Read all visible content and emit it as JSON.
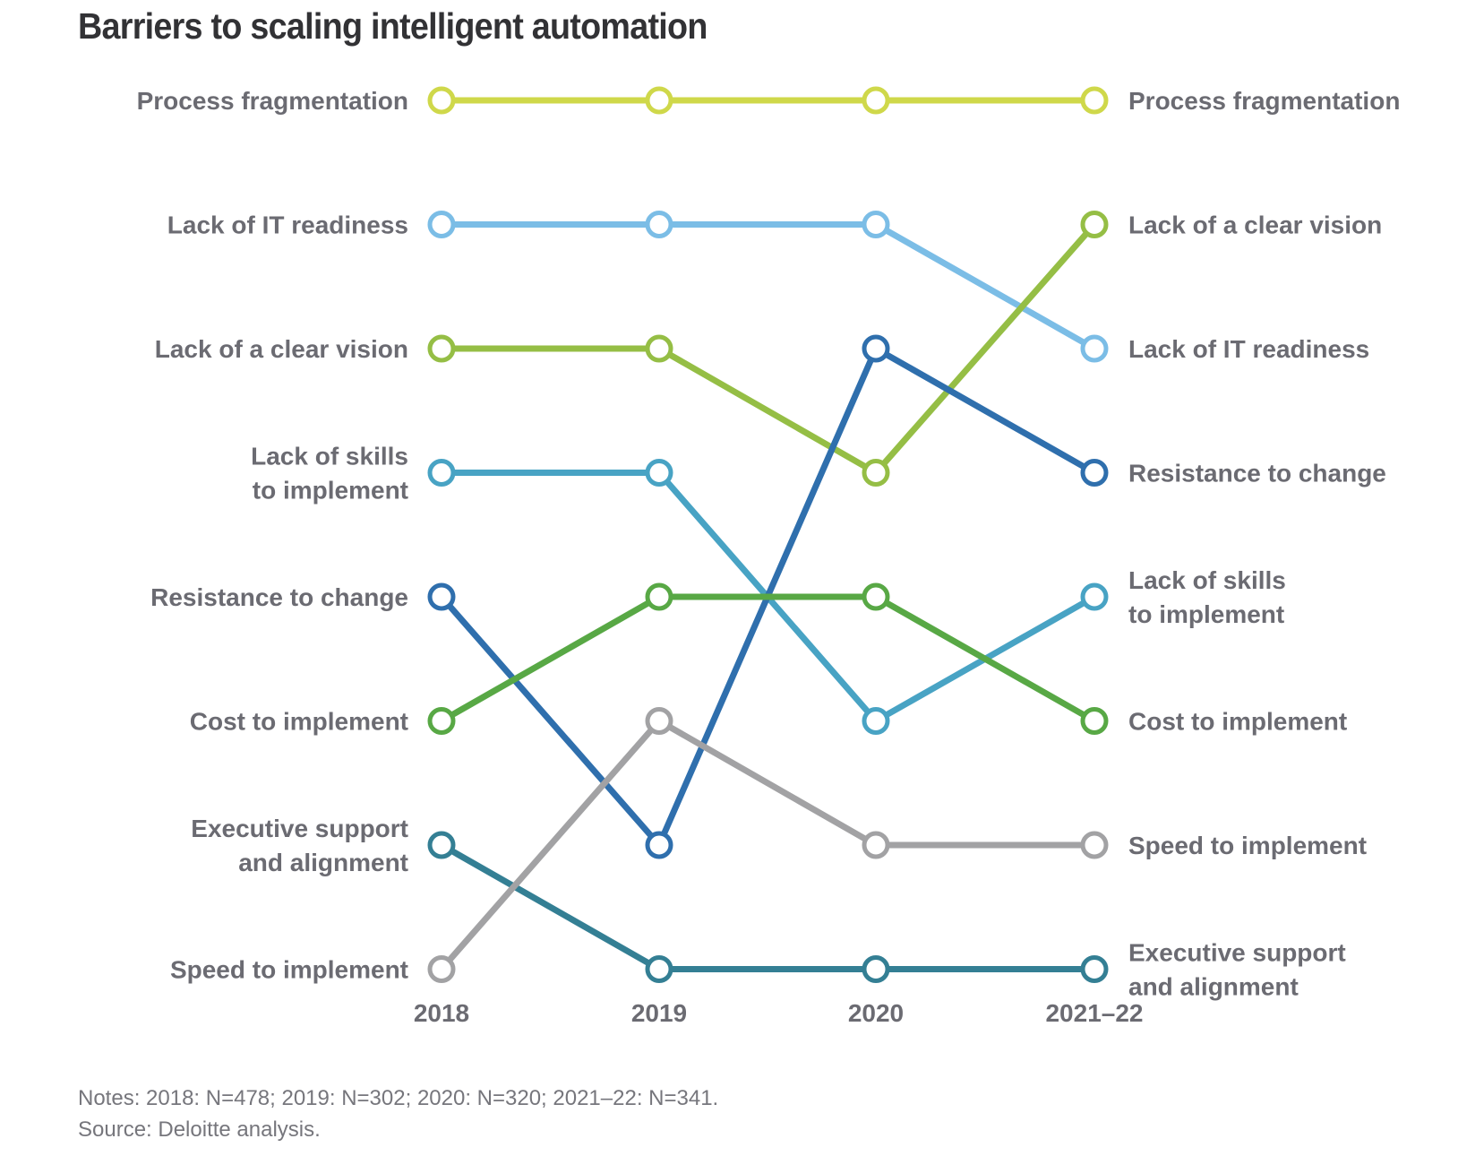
{
  "title": "Barriers to scaling intelligent automation",
  "notes": "Notes: 2018: N=478; 2019: N=302; 2020: N=320; 2021–22: N=341.",
  "source": "Source: Deloitte analysis.",
  "chart_data": {
    "type": "line",
    "title": "Barriers to scaling intelligent automation",
    "chart_subtype": "rank bump chart",
    "x": [
      "2018",
      "2019",
      "2020",
      "2021–22"
    ],
    "y_axis": "rank (1 = top)",
    "ylim": [
      1,
      8
    ],
    "grid": false,
    "legend": "direct labels at both ends",
    "series": [
      {
        "name": "Process fragmentation",
        "lines": [
          "Process fragmentation"
        ],
        "color": "#cfd84a",
        "ranks": [
          1,
          1,
          1,
          1
        ]
      },
      {
        "name": "Lack of IT readiness",
        "lines": [
          "Lack of IT readiness"
        ],
        "color": "#7bbde6",
        "ranks": [
          2,
          2,
          2,
          3
        ]
      },
      {
        "name": "Lack of a clear vision",
        "lines": [
          "Lack of a clear vision"
        ],
        "color": "#95be45",
        "ranks": [
          3,
          3,
          4,
          2
        ]
      },
      {
        "name": "Lack of skills to implement",
        "lines": [
          "Lack of skills",
          "to implement"
        ],
        "color": "#48a3c4",
        "ranks": [
          4,
          4,
          6,
          5
        ]
      },
      {
        "name": "Resistance to change",
        "lines": [
          "Resistance to change"
        ],
        "color": "#2f6fad",
        "ranks": [
          5,
          7,
          3,
          4
        ]
      },
      {
        "name": "Cost to implement",
        "lines": [
          "Cost to implement"
        ],
        "color": "#58a845",
        "ranks": [
          6,
          5,
          5,
          6
        ]
      },
      {
        "name": "Executive support and alignment",
        "lines": [
          "Executive support",
          "and alignment"
        ],
        "color": "#347f94",
        "ranks": [
          7,
          8,
          8,
          8
        ]
      },
      {
        "name": "Speed to implement",
        "lines": [
          "Speed to implement"
        ],
        "color": "#a2a2a4",
        "ranks": [
          8,
          6,
          7,
          7
        ]
      }
    ]
  }
}
